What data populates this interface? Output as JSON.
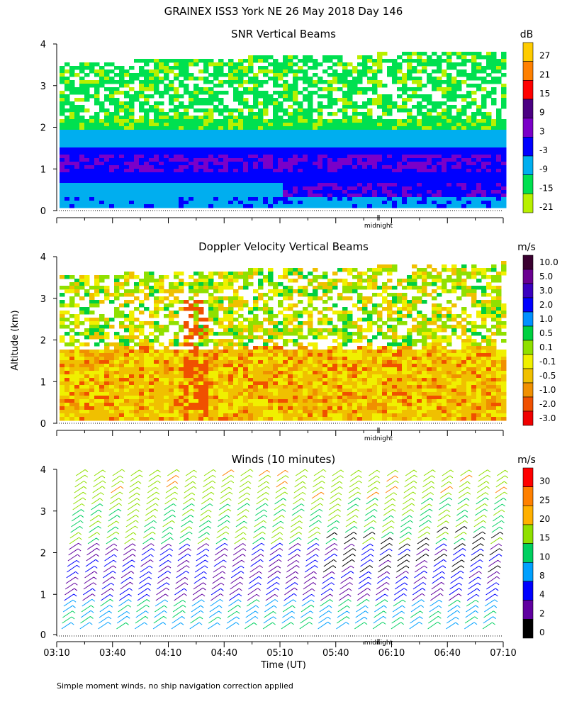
{
  "page": {
    "title": "GRAINEX ISS3 York NE  26 May 2018 Day 146",
    "footnote": "Simple moment winds, no ship navigation correction applied",
    "y_axis_label": "Altitude (km)",
    "x_axis_label": "Time (UT)",
    "midnight_label": "midnight"
  },
  "chart_data": [
    {
      "type": "heatmap",
      "title": "SNR Vertical Beams",
      "ylabel": "Altitude (km)",
      "ylim": [
        0,
        4
      ],
      "y_ticks": [
        "0",
        "1",
        "2",
        "3",
        "4"
      ],
      "xlabel": "",
      "colorbar": {
        "unit": "dB",
        "labels": [
          "27",
          "21",
          "15",
          "9",
          "3",
          "-3",
          "-9",
          "-15",
          "-21"
        ],
        "colors": [
          "#FFCC00",
          "#FF8000",
          "#FF0000",
          "#4B0082",
          "#7A00C8",
          "#0000FF",
          "#00AEEF",
          "#00E050",
          "#B8F000"
        ]
      }
    },
    {
      "type": "heatmap",
      "title": "Doppler Velocity Vertical Beams",
      "ylabel": "Altitude (km)",
      "ylim": [
        0,
        4
      ],
      "y_ticks": [
        "0",
        "1",
        "2",
        "3",
        "4"
      ],
      "xlabel": "",
      "colorbar": {
        "unit": "m/s",
        "labels": [
          "10.0",
          "5.0",
          "3.0",
          "2.0",
          "1.0",
          "0.5",
          "0.1",
          "-0.1",
          "-0.5",
          "-1.0",
          "-2.0",
          "-3.0"
        ],
        "colors": [
          "#3A0030",
          "#6A0090",
          "#3A00C0",
          "#0000FF",
          "#0090FF",
          "#00D040",
          "#90E000",
          "#F0F000",
          "#F0C000",
          "#F09000",
          "#F05000",
          "#F00000"
        ]
      }
    },
    {
      "type": "scatter",
      "title": "Winds (10 minutes)",
      "ylabel": "Altitude (km)",
      "ylim": [
        0,
        4
      ],
      "y_ticks": [
        "0",
        "1",
        "2",
        "3",
        "4"
      ],
      "xlabel": "Time (UT)",
      "x_ticks": [
        "03:10",
        "03:40",
        "04:10",
        "04:40",
        "05:10",
        "05:40",
        "06:10",
        "06:40",
        "07:10"
      ],
      "colorbar": {
        "unit": "m/s",
        "labels": [
          "30",
          "25",
          "20",
          "15",
          "10",
          "8",
          "4",
          "2",
          "0"
        ],
        "colors": [
          "#FF0000",
          "#FF8000",
          "#FFB000",
          "#90E000",
          "#00D060",
          "#00A0FF",
          "#0000FF",
          "#6000A0",
          "#000000"
        ]
      }
    }
  ]
}
